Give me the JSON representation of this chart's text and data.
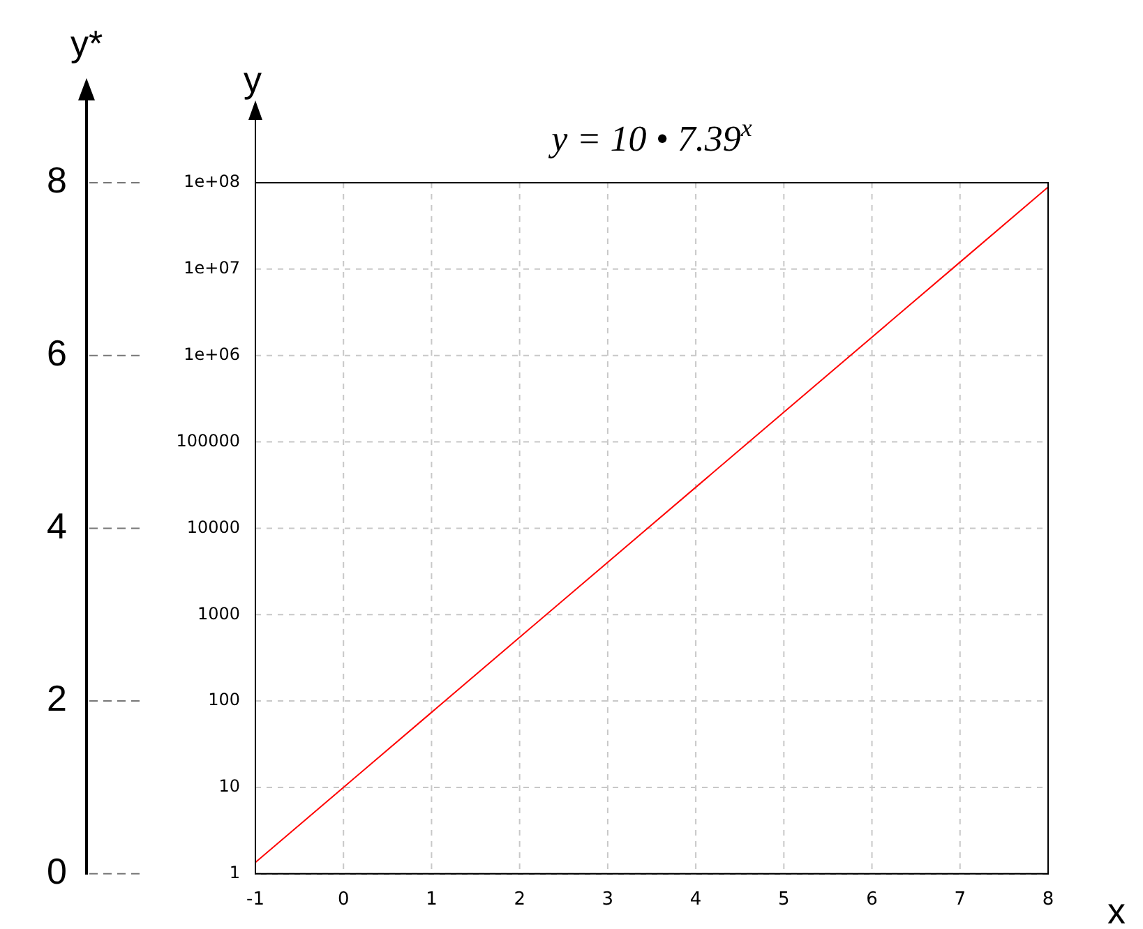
{
  "chart_data": {
    "type": "line",
    "title": "y = 10 • 7.39$^{x}$",
    "xlabel": "x",
    "ylabel": "y",
    "y2label": "y*",
    "x": [
      -1,
      0,
      1,
      2,
      3,
      4,
      5,
      6,
      7,
      8
    ],
    "series": [
      {
        "color": "#ff0000",
        "values": [
          1.353,
          10,
          73.9,
          546.1,
          4036,
          29825,
          220400,
          1629000,
          12040000,
          88950000
        ]
      }
    ],
    "xlim": [
      -1,
      8
    ],
    "xticks": [
      -1,
      0,
      1,
      2,
      3,
      4,
      5,
      6,
      7,
      8
    ],
    "ylim": [
      1,
      100000000
    ],
    "yticks": [
      1,
      10,
      100,
      1000,
      10000,
      100000,
      {
        "value": 1000000,
        "label": "1e+06"
      },
      {
        "value": 10000000,
        "label": "1e+07"
      },
      {
        "value": 100000000,
        "label": "1e+08"
      }
    ],
    "y2lim": [
      0,
      8
    ],
    "y2ticks": [
      0,
      2,
      4,
      6,
      8
    ],
    "log": "y",
    "grid": true,
    "legend": false,
    "marker": "none",
    "line_style": "solid"
  }
}
